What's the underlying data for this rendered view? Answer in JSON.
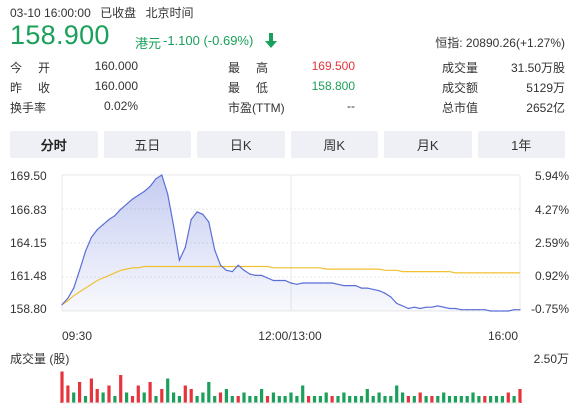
{
  "header": {
    "datetime": "03-10 16:00:00",
    "status": "已收盘",
    "timezone": "北京时间"
  },
  "quote": {
    "price": "158.900",
    "currency": "港元",
    "change": "-1.100 (-0.69%)",
    "direction_icon": "arrow-down-icon"
  },
  "index": {
    "label": "恒指:",
    "value": "20890.26(+1.27%)"
  },
  "stats": [
    {
      "l1": "今开",
      "v1": "160.000",
      "l2": "最高",
      "v2": "169.500",
      "l3": "成交量",
      "v3": "31.50万股"
    },
    {
      "l1": "昨收",
      "v1": "160.000",
      "l2": "最低",
      "v2": "158.800",
      "l3": "成交额",
      "v3": "5129万"
    },
    {
      "l1": "换手率",
      "v1": "0.02%",
      "l2": "市盈(TTM)",
      "v2": "--",
      "l3": "总市值",
      "v3": "2652亿"
    }
  ],
  "tabs": [
    "分时",
    "五日",
    "日K",
    "周K",
    "月K",
    "1年"
  ],
  "active_tab": 0,
  "colors": {
    "up": "#e5343c",
    "down": "#1aa05a",
    "price_line": "#5b6fd6",
    "avg_line": "#f0c030"
  },
  "chart_data": {
    "type": "line",
    "y_ticks": [
      "169.50",
      "166.83",
      "164.15",
      "161.48",
      "158.80"
    ],
    "pct_ticks": [
      "5.94%",
      "4.27%",
      "2.59%",
      "0.92%",
      "-0.75%"
    ],
    "x_ticks": [
      "09:30",
      "12:00/13:00",
      "16:00"
    ],
    "ylim": [
      158.8,
      169.5
    ],
    "volume_label": "成交量 (股)",
    "volume_max_label": "2.50万",
    "series": [
      {
        "values": [
          159.3,
          159.8,
          160.6,
          162.0,
          163.5,
          164.6,
          165.2,
          165.6,
          166.0,
          166.3,
          166.8,
          167.2,
          167.6,
          167.9,
          168.2,
          168.6,
          169.2,
          169.5,
          168.0,
          165.5,
          162.8,
          163.8,
          166.0,
          166.6,
          166.4,
          165.8,
          163.6,
          162.4,
          162.0,
          161.9,
          162.4,
          162.0,
          161.7,
          161.6,
          161.6,
          161.4,
          161.2,
          161.2,
          161.2,
          161.0,
          160.9,
          161.0,
          161.0,
          161.0,
          161.0,
          161.0,
          161.0,
          160.9,
          160.8,
          160.8,
          160.8,
          160.6,
          160.6,
          160.5,
          160.4,
          160.2,
          159.9,
          159.4,
          159.2,
          159.0,
          159.1,
          159.0,
          159.1,
          159.1,
          159.2,
          159.1,
          159.0,
          159.0,
          158.9,
          158.9,
          158.9,
          158.9,
          158.9,
          158.8,
          158.8,
          158.8,
          158.8,
          158.9,
          158.9
        ]
      },
      {
        "values": [
          159.3,
          159.6,
          160.0,
          160.3,
          160.6,
          160.9,
          161.2,
          161.4,
          161.6,
          161.8,
          162.0,
          162.1,
          162.2,
          162.2,
          162.3,
          162.3,
          162.3,
          162.3,
          162.3,
          162.3,
          162.3,
          162.3,
          162.3,
          162.3,
          162.3,
          162.3,
          162.3,
          162.3,
          162.3,
          162.3,
          162.3,
          162.3,
          162.3,
          162.3,
          162.3,
          162.3,
          162.2,
          162.2,
          162.2,
          162.2,
          162.2,
          162.2,
          162.2,
          162.2,
          162.2,
          162.1,
          162.1,
          162.1,
          162.1,
          162.1,
          162.1,
          162.1,
          162.1,
          162.1,
          162.1,
          162.0,
          162.0,
          162.0,
          161.9,
          161.9,
          161.9,
          161.9,
          161.9,
          161.9,
          161.9,
          161.9,
          161.9,
          161.8,
          161.8,
          161.8,
          161.8,
          161.8,
          161.8,
          161.8,
          161.8,
          161.8,
          161.8,
          161.8,
          161.8
        ]
      }
    ],
    "volume": [
      0.9,
      0.5,
      0.3,
      0.6,
      0.2,
      0.7,
      0.4,
      0.3,
      0.5,
      0.2,
      0.8,
      0.3,
      0.2,
      0.5,
      0.3,
      0.6,
      0.2,
      0.4,
      0.7,
      0.3,
      0.2,
      0.5,
      0.4,
      0.2,
      0.3,
      0.6,
      0.2,
      0.3,
      0.4,
      0.2,
      0.2,
      0.3,
      0.2,
      0.2,
      0.4,
      0.2,
      0.3,
      0.2,
      0.2,
      0.3,
      0.2,
      0.5,
      0.2,
      0.2,
      0.2,
      0.3,
      0.2,
      0.2,
      0.3,
      0.2,
      0.2,
      0.2,
      0.4,
      0.2,
      0.3,
      0.2,
      0.2,
      0.5,
      0.3,
      0.2,
      0.2,
      0.3,
      0.2,
      0.2,
      0.2,
      0.3,
      0.2,
      0.2,
      0.2,
      0.2,
      0.3,
      0.2,
      0.2,
      0.2,
      0.2,
      0.2,
      0.3,
      0.2,
      0.4
    ],
    "volume_colors": [
      "up",
      "up",
      "down",
      "up",
      "down",
      "up",
      "up",
      "down",
      "up",
      "down",
      "up",
      "down",
      "up",
      "up",
      "down",
      "up",
      "down",
      "up",
      "down",
      "down",
      "down",
      "up",
      "up",
      "down",
      "down",
      "down",
      "down",
      "up",
      "down",
      "down",
      "up",
      "down",
      "down",
      "down",
      "down",
      "up",
      "down",
      "down",
      "down",
      "down",
      "down",
      "down",
      "up",
      "down",
      "down",
      "down",
      "up",
      "down",
      "down",
      "down",
      "down",
      "down",
      "down",
      "down",
      "down",
      "down",
      "down",
      "down",
      "down",
      "up",
      "down",
      "up",
      "down",
      "up",
      "down",
      "down",
      "down",
      "down",
      "down",
      "down",
      "down",
      "down",
      "up",
      "down",
      "down",
      "down",
      "up",
      "down",
      "up"
    ]
  }
}
